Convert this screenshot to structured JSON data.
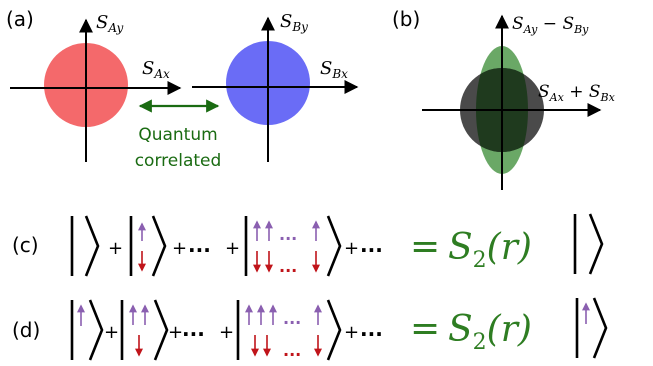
{
  "panel_a": {
    "label": "(a)",
    "ax_label_y_A": {
      "base": "S",
      "sub": "Ay"
    },
    "ax_label_x_A": {
      "base": "S",
      "sub": "Ax"
    },
    "ax_label_y_B": {
      "base": "S",
      "sub": "By"
    },
    "ax_label_x_B": {
      "base": "S",
      "sub": "Bx"
    },
    "caption_line1": "Quantum",
    "caption_line2": "correlated",
    "colors": {
      "circle_A": "#f4696b",
      "circle_B": "#6a6cf6",
      "caption": "#1a6b12"
    }
  },
  "panel_b": {
    "label": "(b)",
    "y_label": {
      "s1": "S",
      "sub1": "Ay",
      "op": " − ",
      "s2": "S",
      "sub2": "By"
    },
    "x_label": {
      "s1": "S",
      "sub1": "Ax",
      "op": " + ",
      "s2": "S",
      "sub2": "Bx"
    },
    "colors": {
      "ellipse": "#6aa866",
      "circle": "#4a4a4a",
      "overlap": "#1f3a1e"
    }
  },
  "row_c": {
    "label": "(c)",
    "plus": "+",
    "dots": "...",
    "red_dots": "...",
    "purple_dots": "...",
    "equals": "=",
    "op_S": "S",
    "op_sub": "2",
    "op_arg": "(r)"
  },
  "row_d": {
    "label": "(d)",
    "plus": "+",
    "dots": "...",
    "red_dots": "...",
    "purple_dots": "...",
    "equals": "=",
    "op_S": "S",
    "op_sub": "2",
    "op_arg": "(r)"
  },
  "colors": {
    "up_arrow": "#8a5fb0",
    "down_arrow": "#c0141a",
    "green_text": "#2e7d22"
  }
}
